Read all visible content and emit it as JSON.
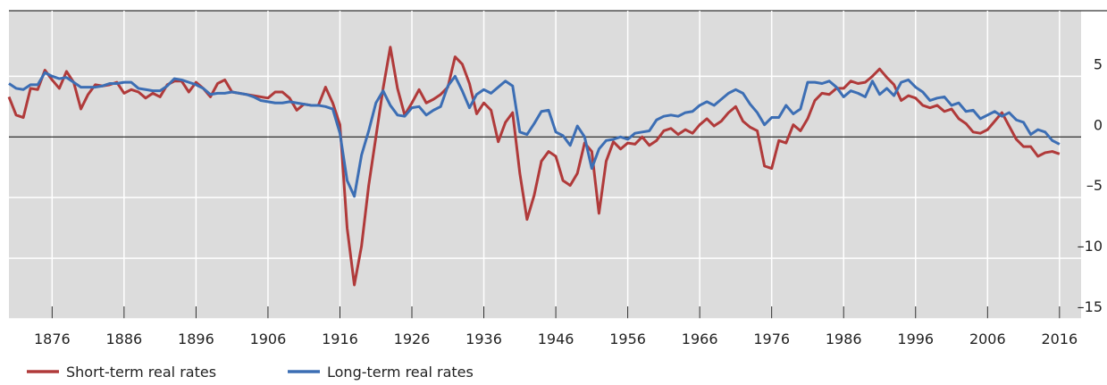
{
  "chart_data": {
    "type": "line",
    "x": [
      1870,
      1871,
      1872,
      1873,
      1874,
      1875,
      1876,
      1877,
      1878,
      1879,
      1880,
      1881,
      1882,
      1883,
      1884,
      1885,
      1886,
      1887,
      1888,
      1889,
      1890,
      1891,
      1892,
      1893,
      1894,
      1895,
      1896,
      1897,
      1898,
      1899,
      1900,
      1901,
      1902,
      1903,
      1904,
      1905,
      1906,
      1907,
      1908,
      1909,
      1910,
      1911,
      1912,
      1913,
      1914,
      1915,
      1916,
      1917,
      1918,
      1919,
      1920,
      1921,
      1922,
      1923,
      1924,
      1925,
      1926,
      1927,
      1928,
      1929,
      1930,
      1931,
      1932,
      1933,
      1934,
      1935,
      1936,
      1937,
      1938,
      1939,
      1940,
      1941,
      1942,
      1943,
      1944,
      1945,
      1946,
      1947,
      1948,
      1949,
      1950,
      1951,
      1952,
      1953,
      1954,
      1955,
      1956,
      1957,
      1958,
      1959,
      1960,
      1961,
      1962,
      1963,
      1964,
      1965,
      1966,
      1967,
      1968,
      1969,
      1970,
      1971,
      1972,
      1973,
      1974,
      1975,
      1976,
      1977,
      1978,
      1979,
      1980,
      1981,
      1982,
      1983,
      1984,
      1985,
      1986,
      1987,
      1988,
      1989,
      1990,
      1991,
      1992,
      1993,
      1994,
      1995,
      1996,
      1997,
      1998,
      1999,
      2000,
      2001,
      2002,
      2003,
      2004,
      2005,
      2006,
      2007,
      2008,
      2009,
      2010,
      2011,
      2012,
      2013,
      2014,
      2015,
      2016
    ],
    "series": [
      {
        "name": "Short-term real rates",
        "color": "#b03a3a",
        "values": [
          3.3,
          1.8,
          1.6,
          4.0,
          3.9,
          5.5,
          4.7,
          4.0,
          5.4,
          4.5,
          2.3,
          3.5,
          4.3,
          4.2,
          4.3,
          4.5,
          3.6,
          3.9,
          3.7,
          3.2,
          3.6,
          3.3,
          4.3,
          4.6,
          4.6,
          3.7,
          4.5,
          4.0,
          3.3,
          4.4,
          4.7,
          3.7,
          3.6,
          3.5,
          3.4,
          3.3,
          3.2,
          3.7,
          3.7,
          3.2,
          2.2,
          2.7,
          2.6,
          2.6,
          4.1,
          2.8,
          1.0,
          -7.5,
          -12.2,
          -9.0,
          -4.0,
          0,
          4.0,
          7.4,
          4.0,
          1.8,
          2.8,
          3.9,
          2.8,
          3.1,
          3.5,
          4.1,
          6.6,
          6.0,
          4.4,
          1.9,
          2.8,
          2.2,
          -0.4,
          1.2,
          2.0,
          -3.0,
          -6.8,
          -4.8,
          -2.0,
          -1.2,
          -1.6,
          -3.6,
          -4.0,
          -3.0,
          -0.5,
          -1.2,
          -6.3,
          -2.0,
          -0.4,
          -1.0,
          -0.5,
          -0.6,
          0,
          -0.7,
          -0.3,
          0.5,
          0.7,
          0.2,
          0.6,
          0.3,
          1.0,
          1.5,
          0.9,
          1.3,
          2.0,
          2.5,
          1.3,
          0.8,
          0.5,
          -2.4,
          -2.6,
          -0.3,
          -0.5,
          1.0,
          0.5,
          1.5,
          3.0,
          3.6,
          3.5,
          4.0,
          4.0,
          4.6,
          4.4,
          4.5,
          5.0,
          5.6,
          4.9,
          4.3,
          3.0,
          3.4,
          3.2,
          2.6,
          2.4,
          2.6,
          2.1,
          2.3,
          1.5,
          1.1,
          0.4,
          0.3,
          0.6,
          1.3,
          2.0,
          0.9,
          -0.2,
          -0.8,
          -0.8,
          -1.6,
          -1.3,
          -1.2,
          -1.4
        ]
      },
      {
        "name": "Long-term real rates",
        "color": "#3c6eb4",
        "values": [
          4.4,
          4.0,
          3.9,
          4.3,
          4.3,
          5.3,
          5.0,
          4.8,
          4.9,
          4.5,
          4.1,
          4.1,
          4.1,
          4.2,
          4.4,
          4.4,
          4.5,
          4.5,
          4.0,
          3.9,
          3.8,
          3.8,
          4.2,
          4.8,
          4.7,
          4.5,
          4.3,
          4.0,
          3.5,
          3.6,
          3.6,
          3.7,
          3.6,
          3.5,
          3.3,
          3.0,
          2.9,
          2.8,
          2.8,
          2.9,
          2.8,
          2.7,
          2.6,
          2.6,
          2.5,
          2.3,
          0.3,
          -3.6,
          -4.9,
          -1.5,
          0.5,
          2.8,
          3.8,
          2.6,
          1.8,
          1.7,
          2.4,
          2.5,
          1.8,
          2.2,
          2.5,
          4.2,
          5.0,
          3.8,
          2.4,
          3.5,
          3.9,
          3.6,
          4.1,
          4.6,
          4.2,
          0.4,
          0.2,
          1.1,
          2.1,
          2.2,
          0.4,
          0.1,
          -0.7,
          0.9,
          0,
          -2.6,
          -1.0,
          -0.3,
          -0.2,
          0,
          -0.2,
          0.3,
          0.4,
          0.5,
          1.4,
          1.7,
          1.8,
          1.7,
          2.0,
          2.1,
          2.6,
          2.9,
          2.6,
          3.1,
          3.6,
          3.9,
          3.6,
          2.7,
          2.0,
          1.0,
          1.6,
          1.6,
          2.6,
          1.9,
          2.3,
          4.5,
          4.5,
          4.4,
          4.6,
          4.1,
          3.3,
          3.8,
          3.6,
          3.3,
          4.6,
          3.5,
          4.0,
          3.4,
          4.5,
          4.7,
          4.1,
          3.7,
          3.0,
          3.2,
          3.3,
          2.6,
          2.8,
          2.1,
          2.2,
          1.5,
          1.8,
          2.1,
          1.7,
          2.0,
          1.4,
          1.2,
          0.2,
          0.6,
          0.4,
          -0.3,
          -0.6
        ]
      }
    ],
    "xlim": [
      1870,
      2019
    ],
    "xticks": [
      1876,
      1886,
      1896,
      1906,
      1916,
      1926,
      1936,
      1946,
      1956,
      1966,
      1976,
      1986,
      1996,
      2006,
      2016
    ],
    "ylim": [
      -15,
      10.4
    ],
    "yticks": [
      {
        "value": -15,
        "label": "–15"
      },
      {
        "value": -10,
        "label": "–10"
      },
      {
        "value": -5,
        "label": "–5"
      },
      0,
      5
    ],
    "grid": true
  }
}
